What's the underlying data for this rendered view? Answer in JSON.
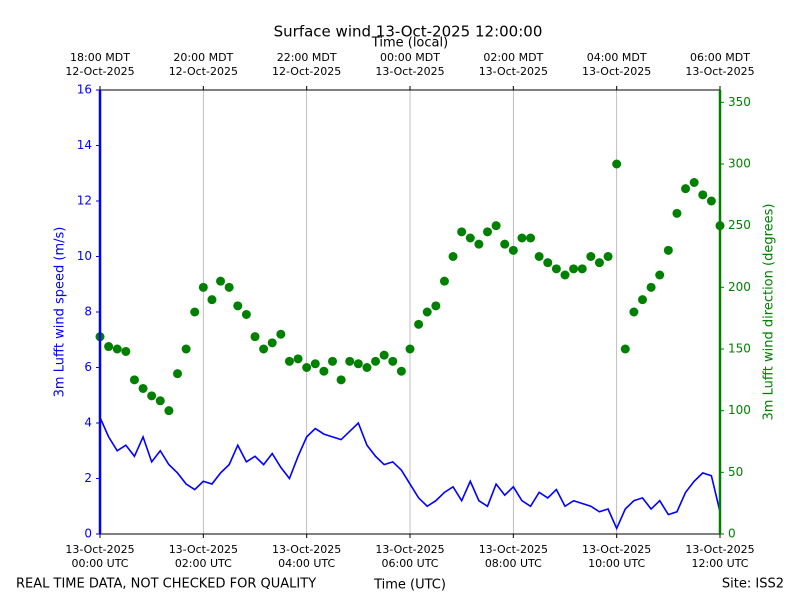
{
  "chart_data": {
    "type": "line",
    "title": "Surface wind 13-Oct-2025 12:00:00",
    "xlabel": "Time (UTC)",
    "x2label": "Time (local)",
    "ylabel": "3m Lufft wind speed (m/s)",
    "y2label": "3m Lufft wind direction (degrees)",
    "footer_left": "REAL TIME DATA, NOT CHECKED FOR QUALITY",
    "footer_right": "Site: ISS2",
    "grid": true,
    "xlim": [
      "2025-10-13T00:00",
      "2025-10-13T12:00"
    ],
    "xticks": [
      {
        "value": "2025-10-13T00:00",
        "label": "13-Oct-2025\n00:00 UTC"
      },
      {
        "value": "2025-10-13T02:00",
        "label": "13-Oct-2025\n02:00 UTC"
      },
      {
        "value": "2025-10-13T04:00",
        "label": "13-Oct-2025\n04:00 UTC"
      },
      {
        "value": "2025-10-13T06:00",
        "label": "13-Oct-2025\n06:00 UTC"
      },
      {
        "value": "2025-10-13T08:00",
        "label": "13-Oct-2025\n08:00 UTC"
      },
      {
        "value": "2025-10-13T10:00",
        "label": "13-Oct-2025\n10:00 UTC"
      },
      {
        "value": "2025-10-13T12:00",
        "label": "13-Oct-2025\n12:00 UTC"
      }
    ],
    "x2ticks": [
      {
        "value": "2025-10-13T00:00",
        "label": "18:00 MDT\n12-Oct-2025"
      },
      {
        "value": "2025-10-13T02:00",
        "label": "20:00 MDT\n12-Oct-2025"
      },
      {
        "value": "2025-10-13T04:00",
        "label": "22:00 MDT\n12-Oct-2025"
      },
      {
        "value": "2025-10-13T06:00",
        "label": "00:00 MDT\n13-Oct-2025"
      },
      {
        "value": "2025-10-13T08:00",
        "label": "02:00 MDT\n13-Oct-2025"
      },
      {
        "value": "2025-10-13T10:00",
        "label": "04:00 MDT\n13-Oct-2025"
      },
      {
        "value": "2025-10-13T12:00",
        "label": "06:00 MDT\n13-Oct-2025"
      }
    ],
    "ylim": [
      0,
      16
    ],
    "yticks": [
      0,
      2,
      4,
      6,
      8,
      10,
      12,
      14,
      16
    ],
    "y2lim": [
      0,
      360
    ],
    "y2ticks": [
      0,
      50,
      100,
      150,
      200,
      250,
      300,
      350
    ],
    "x": [
      "2025-10-13T00:00",
      "2025-10-13T00:10",
      "2025-10-13T00:20",
      "2025-10-13T00:30",
      "2025-10-13T00:40",
      "2025-10-13T00:50",
      "2025-10-13T01:00",
      "2025-10-13T01:10",
      "2025-10-13T01:20",
      "2025-10-13T01:30",
      "2025-10-13T01:40",
      "2025-10-13T01:50",
      "2025-10-13T02:00",
      "2025-10-13T02:10",
      "2025-10-13T02:20",
      "2025-10-13T02:30",
      "2025-10-13T02:40",
      "2025-10-13T02:50",
      "2025-10-13T03:00",
      "2025-10-13T03:10",
      "2025-10-13T03:20",
      "2025-10-13T03:30",
      "2025-10-13T03:40",
      "2025-10-13T03:50",
      "2025-10-13T04:00",
      "2025-10-13T04:10",
      "2025-10-13T04:20",
      "2025-10-13T04:30",
      "2025-10-13T04:40",
      "2025-10-13T04:50",
      "2025-10-13T05:00",
      "2025-10-13T05:10",
      "2025-10-13T05:20",
      "2025-10-13T05:30",
      "2025-10-13T05:40",
      "2025-10-13T05:50",
      "2025-10-13T06:00",
      "2025-10-13T06:10",
      "2025-10-13T06:20",
      "2025-10-13T06:30",
      "2025-10-13T06:40",
      "2025-10-13T06:50",
      "2025-10-13T07:00",
      "2025-10-13T07:10",
      "2025-10-13T07:20",
      "2025-10-13T07:30",
      "2025-10-13T07:40",
      "2025-10-13T07:50",
      "2025-10-13T08:00",
      "2025-10-13T08:10",
      "2025-10-13T08:20",
      "2025-10-13T08:30",
      "2025-10-13T08:40",
      "2025-10-13T08:50",
      "2025-10-13T09:00",
      "2025-10-13T09:10",
      "2025-10-13T09:20",
      "2025-10-13T09:30",
      "2025-10-13T09:40",
      "2025-10-13T09:50",
      "2025-10-13T10:00",
      "2025-10-13T10:10",
      "2025-10-13T10:20",
      "2025-10-13T10:30",
      "2025-10-13T10:40",
      "2025-10-13T10:50",
      "2025-10-13T11:00",
      "2025-10-13T11:10",
      "2025-10-13T11:20",
      "2025-10-13T11:30",
      "2025-10-13T11:40",
      "2025-10-13T11:50",
      "2025-10-13T12:00"
    ],
    "series": [
      {
        "name": "3m Lufft wind speed",
        "type": "line",
        "axis": "y",
        "color": "#0000ff",
        "values": [
          4.2,
          3.5,
          3.0,
          3.2,
          2.8,
          3.5,
          2.6,
          3.0,
          2.5,
          2.2,
          1.8,
          1.6,
          1.9,
          1.8,
          2.2,
          2.5,
          3.2,
          2.6,
          2.8,
          2.5,
          2.9,
          2.4,
          2.0,
          2.8,
          3.5,
          3.8,
          3.6,
          3.5,
          3.4,
          3.7,
          4.0,
          3.2,
          2.8,
          2.5,
          2.6,
          2.3,
          1.8,
          1.3,
          1.0,
          1.2,
          1.5,
          1.7,
          1.2,
          1.9,
          1.2,
          1.0,
          1.8,
          1.4,
          1.7,
          1.2,
          1.0,
          1.5,
          1.3,
          1.6,
          1.0,
          1.2,
          1.1,
          1.0,
          0.8,
          0.9,
          0.2,
          0.9,
          1.2,
          1.3,
          0.9,
          1.2,
          0.7,
          0.8,
          1.5,
          1.9,
          2.2,
          2.1,
          0.8
        ]
      },
      {
        "name": "3m Lufft wind direction",
        "type": "scatter",
        "axis": "y2",
        "color": "#008000",
        "values": [
          160,
          152,
          150,
          148,
          125,
          118,
          112,
          108,
          100,
          130,
          150,
          180,
          200,
          190,
          205,
          200,
          185,
          178,
          160,
          150,
          155,
          162,
          140,
          142,
          135,
          138,
          132,
          140,
          125,
          140,
          138,
          135,
          140,
          145,
          140,
          132,
          150,
          170,
          180,
          185,
          205,
          225,
          245,
          240,
          235,
          245,
          250,
          235,
          230,
          240,
          240,
          225,
          220,
          215,
          210,
          215,
          215,
          225,
          220,
          225,
          300,
          150,
          180,
          190,
          200,
          210,
          230,
          260,
          280,
          285,
          275,
          270,
          250
        ]
      }
    ]
  }
}
